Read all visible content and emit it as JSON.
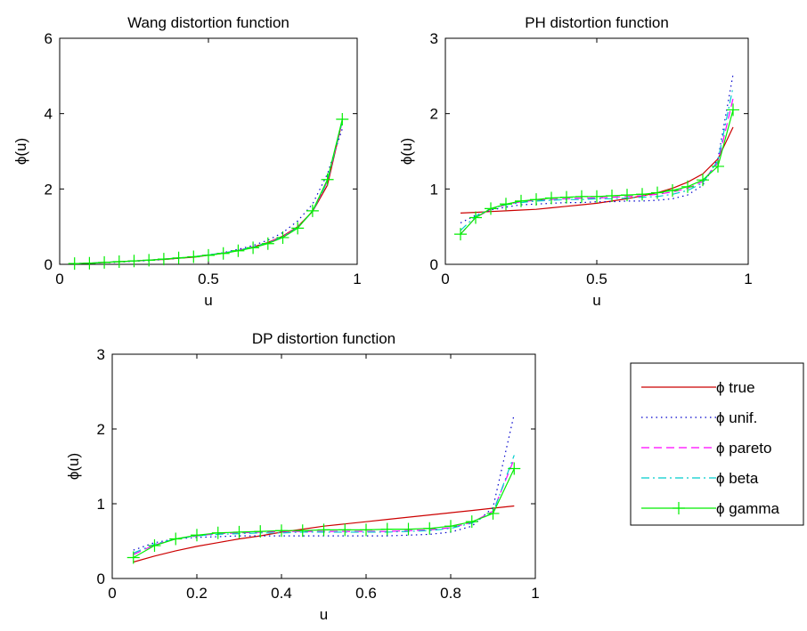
{
  "chart_data": [
    {
      "type": "line",
      "title": "Wang distortion function",
      "xlabel": "u",
      "ylabel": "ϕ(u)",
      "xlim": [
        0,
        1
      ],
      "ylim": [
        0,
        6
      ],
      "xticks": [
        0,
        0.5,
        1
      ],
      "xticklabels": [
        "0",
        "0.5",
        "1"
      ],
      "yticks": [
        0,
        2,
        4,
        6
      ],
      "yticklabels": [
        "0",
        "2",
        "4",
        "6"
      ],
      "grid": false,
      "x": [
        0.05,
        0.1,
        0.15,
        0.2,
        0.25,
        0.3,
        0.35,
        0.4,
        0.45,
        0.5,
        0.55,
        0.6,
        0.65,
        0.7,
        0.75,
        0.8,
        0.85,
        0.9,
        0.95
      ],
      "series": [
        {
          "key": "true",
          "values": [
            0.02,
            0.03,
            0.05,
            0.07,
            0.09,
            0.11,
            0.13,
            0.16,
            0.19,
            0.24,
            0.29,
            0.37,
            0.46,
            0.58,
            0.75,
            1.0,
            1.4,
            2.1,
            3.8
          ]
        },
        {
          "key": "unif",
          "values": [
            0.02,
            0.03,
            0.04,
            0.06,
            0.08,
            0.1,
            0.13,
            0.16,
            0.2,
            0.25,
            0.31,
            0.4,
            0.5,
            0.64,
            0.84,
            1.15,
            1.6,
            2.4,
            3.6
          ]
        },
        {
          "key": "pareto",
          "values": [
            0.02,
            0.03,
            0.05,
            0.07,
            0.09,
            0.11,
            0.14,
            0.17,
            0.2,
            0.25,
            0.3,
            0.37,
            0.46,
            0.57,
            0.73,
            0.98,
            1.4,
            2.2,
            3.8
          ]
        },
        {
          "key": "beta",
          "values": [
            0.02,
            0.03,
            0.05,
            0.07,
            0.09,
            0.11,
            0.14,
            0.17,
            0.2,
            0.25,
            0.3,
            0.37,
            0.46,
            0.57,
            0.73,
            0.98,
            1.4,
            2.2,
            3.8
          ]
        },
        {
          "key": "gamma",
          "values": [
            0.02,
            0.03,
            0.05,
            0.07,
            0.09,
            0.11,
            0.14,
            0.17,
            0.2,
            0.24,
            0.29,
            0.36,
            0.44,
            0.55,
            0.71,
            0.96,
            1.42,
            2.25,
            3.85
          ]
        }
      ]
    },
    {
      "type": "line",
      "title": "PH distortion function",
      "xlabel": "u",
      "ylabel": "ϕ(u)",
      "xlim": [
        0,
        1
      ],
      "ylim": [
        0,
        3
      ],
      "xticks": [
        0,
        0.5,
        1
      ],
      "xticklabels": [
        "0",
        "0.5",
        "1"
      ],
      "yticks": [
        0,
        1,
        2,
        3
      ],
      "yticklabels": [
        "0",
        "1",
        "2",
        "3"
      ],
      "grid": false,
      "x": [
        0.05,
        0.1,
        0.15,
        0.2,
        0.25,
        0.3,
        0.35,
        0.4,
        0.45,
        0.5,
        0.55,
        0.6,
        0.65,
        0.7,
        0.75,
        0.8,
        0.85,
        0.9,
        0.95
      ],
      "series": [
        {
          "key": "true",
          "values": [
            0.68,
            0.69,
            0.7,
            0.71,
            0.72,
            0.73,
            0.75,
            0.77,
            0.79,
            0.81,
            0.84,
            0.87,
            0.91,
            0.95,
            1.01,
            1.09,
            1.2,
            1.4,
            1.82
          ]
        },
        {
          "key": "unif",
          "values": [
            0.55,
            0.65,
            0.72,
            0.76,
            0.79,
            0.8,
            0.81,
            0.82,
            0.82,
            0.83,
            0.83,
            0.84,
            0.84,
            0.85,
            0.87,
            0.92,
            1.05,
            1.4,
            2.52
          ]
        },
        {
          "key": "pareto",
          "values": [
            0.4,
            0.62,
            0.73,
            0.79,
            0.83,
            0.85,
            0.86,
            0.87,
            0.88,
            0.88,
            0.89,
            0.9,
            0.91,
            0.93,
            0.96,
            1.01,
            1.1,
            1.35,
            2.2
          ]
        },
        {
          "key": "beta",
          "values": [
            0.45,
            0.64,
            0.74,
            0.79,
            0.82,
            0.84,
            0.85,
            0.86,
            0.86,
            0.87,
            0.87,
            0.88,
            0.89,
            0.9,
            0.93,
            0.98,
            1.08,
            1.38,
            2.35
          ]
        },
        {
          "key": "gamma",
          "values": [
            0.4,
            0.62,
            0.74,
            0.8,
            0.84,
            0.86,
            0.88,
            0.89,
            0.9,
            0.9,
            0.91,
            0.92,
            0.93,
            0.95,
            0.98,
            1.03,
            1.12,
            1.3,
            2.05
          ]
        }
      ]
    },
    {
      "type": "line",
      "title": "DP distortion function",
      "xlabel": "u",
      "ylabel": "ϕ(u)",
      "xlim": [
        0,
        1
      ],
      "ylim": [
        0,
        3
      ],
      "xticks": [
        0,
        0.2,
        0.4,
        0.6,
        0.8,
        1
      ],
      "xticklabels": [
        "0",
        "0.2",
        "0.4",
        "0.6",
        "0.8",
        "1"
      ],
      "yticks": [
        0,
        1,
        2,
        3
      ],
      "yticklabels": [
        "0",
        "1",
        "2",
        "3"
      ],
      "grid": false,
      "x": [
        0.05,
        0.1,
        0.15,
        0.2,
        0.25,
        0.3,
        0.35,
        0.4,
        0.45,
        0.5,
        0.55,
        0.6,
        0.65,
        0.7,
        0.75,
        0.8,
        0.85,
        0.9,
        0.95
      ],
      "series": [
        {
          "key": "true",
          "values": [
            0.22,
            0.3,
            0.37,
            0.43,
            0.48,
            0.53,
            0.57,
            0.62,
            0.66,
            0.7,
            0.73,
            0.76,
            0.79,
            0.82,
            0.85,
            0.88,
            0.91,
            0.94,
            0.97
          ]
        },
        {
          "key": "unif",
          "values": [
            0.38,
            0.48,
            0.53,
            0.55,
            0.56,
            0.57,
            0.57,
            0.57,
            0.57,
            0.57,
            0.57,
            0.57,
            0.57,
            0.58,
            0.59,
            0.62,
            0.7,
            0.95,
            2.2
          ]
        },
        {
          "key": "pareto",
          "values": [
            0.32,
            0.45,
            0.53,
            0.57,
            0.6,
            0.61,
            0.62,
            0.63,
            0.63,
            0.63,
            0.63,
            0.63,
            0.63,
            0.64,
            0.65,
            0.68,
            0.75,
            0.9,
            1.6
          ]
        },
        {
          "key": "beta",
          "values": [
            0.34,
            0.46,
            0.53,
            0.57,
            0.59,
            0.6,
            0.61,
            0.61,
            0.62,
            0.62,
            0.62,
            0.62,
            0.62,
            0.63,
            0.64,
            0.67,
            0.74,
            0.88,
            1.65
          ]
        },
        {
          "key": "gamma",
          "values": [
            0.28,
            0.44,
            0.53,
            0.58,
            0.61,
            0.62,
            0.63,
            0.64,
            0.64,
            0.65,
            0.65,
            0.65,
            0.66,
            0.66,
            0.67,
            0.7,
            0.76,
            0.87,
            1.47
          ]
        }
      ]
    }
  ],
  "legend": {
    "placement": "right of bottom panel",
    "entries": [
      {
        "key": "true",
        "label": "ϕ true",
        "color": "#cc0000",
        "dash": "solid",
        "marker": "none"
      },
      {
        "key": "unif",
        "label": "ϕ unif.",
        "color": "#0000cc",
        "dash": "dotted",
        "marker": "none"
      },
      {
        "key": "pareto",
        "label": "ϕ pareto",
        "color": "#ff00ff",
        "dash": "dashed",
        "marker": "none"
      },
      {
        "key": "beta",
        "label": "ϕ beta",
        "color": "#00cccc",
        "dash": "dashdot",
        "marker": "none"
      },
      {
        "key": "gamma",
        "label": "ϕ gamma",
        "color": "#00ee00",
        "dash": "solid",
        "marker": "plus"
      }
    ]
  }
}
